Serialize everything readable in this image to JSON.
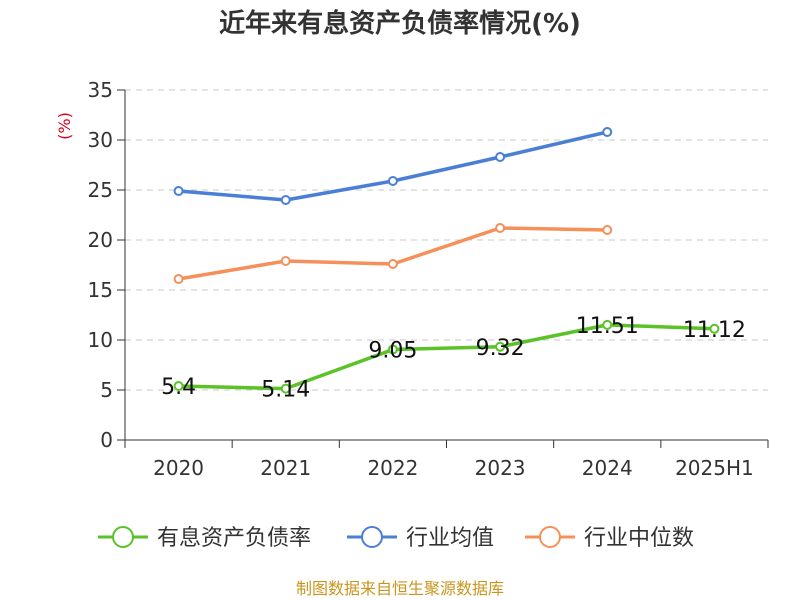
{
  "chart_data": {
    "type": "line",
    "title": "近年来有息资产负债率情况(%)",
    "ylabel": "(%)",
    "categories": [
      "2020",
      "2021",
      "2022",
      "2023",
      "2024",
      "2025H1"
    ],
    "ylim": [
      0,
      35
    ],
    "yticks": [
      0,
      5,
      10,
      15,
      20,
      25,
      30,
      35
    ],
    "grid": true,
    "legend_position": "bottom",
    "series": [
      {
        "name": "有息资产负债率",
        "color": "#5bc228",
        "values": [
          5.4,
          5.14,
          9.05,
          9.32,
          11.51,
          11.12
        ],
        "labels": [
          "5.4",
          "5.14",
          "9.05",
          "9.32",
          "11.51",
          "11.12"
        ]
      },
      {
        "name": "行业均值",
        "color": "#4a7fd6",
        "values": [
          24.9,
          24.0,
          25.9,
          28.3,
          30.8,
          null
        ]
      },
      {
        "name": "行业中位数",
        "color": "#f5905a",
        "values": [
          16.1,
          17.9,
          17.6,
          21.2,
          21.0,
          null
        ]
      }
    ],
    "source": "制图数据来自恒生聚源数据库"
  }
}
